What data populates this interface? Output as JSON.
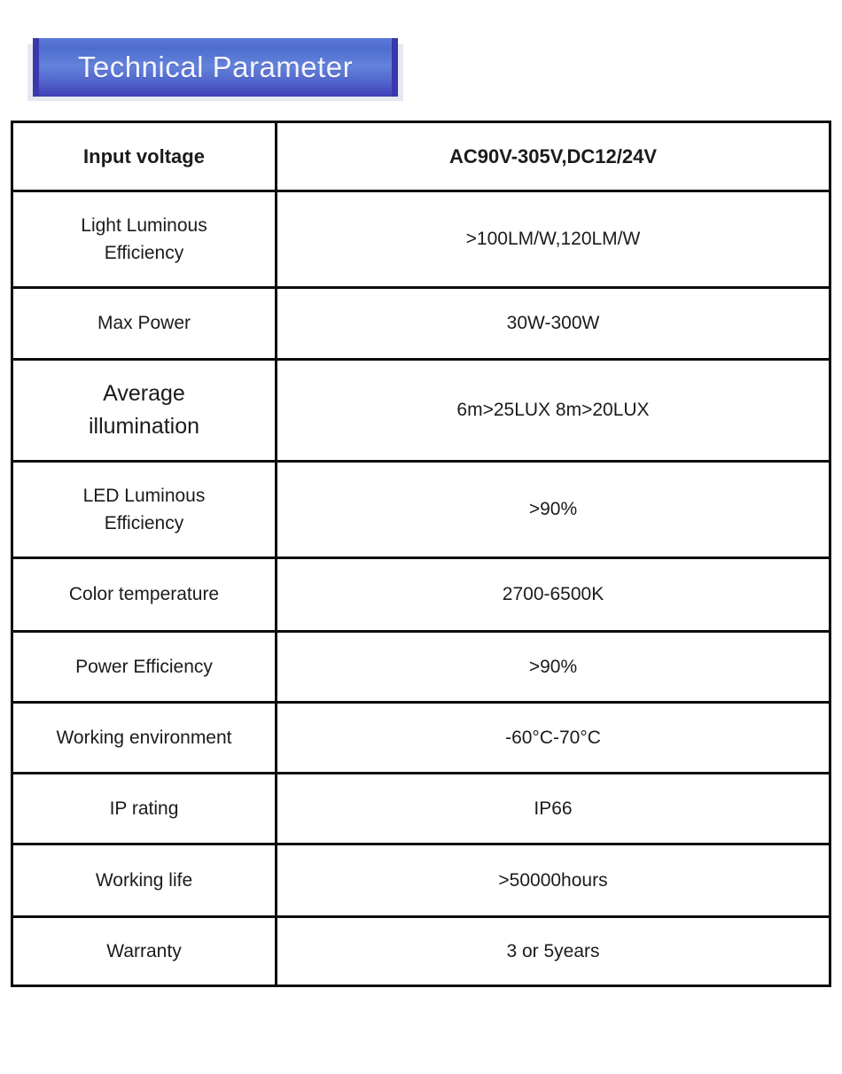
{
  "header": {
    "title": "Technical Parameter",
    "gradient_top": "#5b79d6",
    "gradient_middle": "#6382da",
    "gradient_bottom": "#403eb5",
    "edge_color": "#3b38ae",
    "shadow_color": "#e6e9f1",
    "text_color": "#f4f5ff"
  },
  "table": {
    "border_color": "#0d0d0d",
    "text_color": "#1b1b1b",
    "rows": [
      {
        "label": "Input voltage",
        "value": "AC90V-305V,DC12/24V"
      },
      {
        "label": "Light Luminous\nEfficiency",
        "value": ">100LM/W,120LM/W"
      },
      {
        "label": "Max Power",
        "value": "30W-300W"
      },
      {
        "label": "Average\nillumination",
        "value": "6m>25LUX 8m>20LUX"
      },
      {
        "label": "LED Luminous\nEfficiency",
        "value": ">90%"
      },
      {
        "label": "Color temperature",
        "value": "2700-6500K"
      },
      {
        "label": "Power Efficiency",
        "value": ">90%"
      },
      {
        "label": "Working environment",
        "value": "-60°C-70°C"
      },
      {
        "label": "IP rating",
        "value": "IP66"
      },
      {
        "label": "Working life",
        "value": ">50000hours"
      },
      {
        "label": "Warranty",
        "value": "3 or 5years"
      }
    ]
  }
}
